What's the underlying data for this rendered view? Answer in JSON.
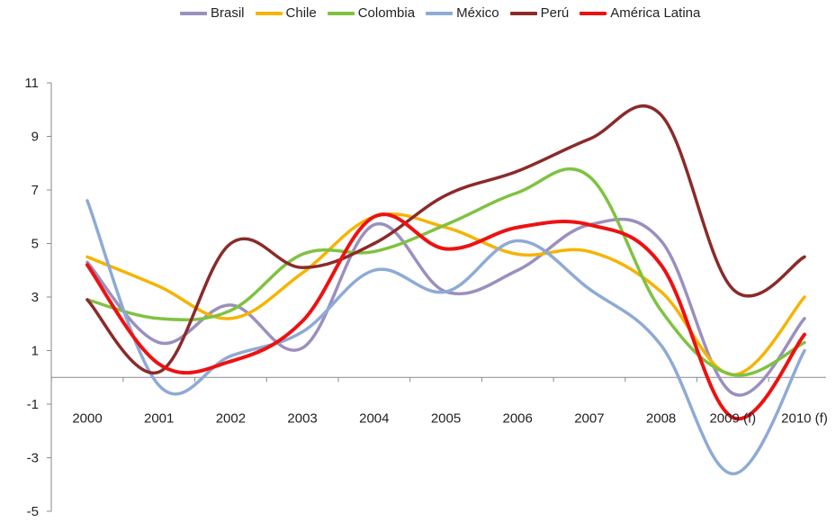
{
  "chart_data": {
    "type": "line",
    "title": "",
    "xlabel": "",
    "ylabel": "",
    "categories": [
      "2000",
      "2001",
      "2002",
      "2003",
      "2004",
      "2005",
      "2006",
      "2007",
      "2008",
      "2009 (f)",
      "2010 (f)"
    ],
    "ylim": [
      -5,
      11
    ],
    "yticks": [
      "11",
      "9",
      "7",
      "5",
      "3",
      "1",
      "-1",
      "-3",
      "-5"
    ],
    "legend_position": "top",
    "grid": false,
    "series": [
      {
        "name": "Brasil",
        "color": "#9b8fbf",
        "values": [
          4.3,
          1.3,
          2.7,
          1.1,
          5.7,
          3.2,
          4.0,
          5.7,
          5.1,
          -0.6,
          2.2
        ]
      },
      {
        "name": "Chile",
        "color": "#f5b400",
        "values": [
          4.5,
          3.4,
          2.2,
          3.9,
          6.0,
          5.6,
          4.6,
          4.7,
          3.2,
          0.1,
          3.0
        ]
      },
      {
        "name": "Colombia",
        "color": "#7fc241",
        "values": [
          2.9,
          2.2,
          2.5,
          4.6,
          4.7,
          5.7,
          6.9,
          7.5,
          2.5,
          0.1,
          1.3
        ]
      },
      {
        "name": "México",
        "color": "#8eaad6",
        "values": [
          6.6,
          -0.3,
          0.8,
          1.7,
          4.0,
          3.2,
          5.1,
          3.3,
          1.2,
          -3.6,
          1.0
        ]
      },
      {
        "name": "Perú",
        "color": "#8b2a2a",
        "values": [
          2.9,
          0.2,
          5.0,
          4.1,
          5.0,
          6.8,
          7.7,
          8.9,
          9.8,
          3.3,
          4.5
        ]
      },
      {
        "name": "América Latina",
        "color": "#ee1111",
        "values": [
          4.2,
          0.5,
          0.6,
          2.1,
          6.0,
          4.8,
          5.6,
          5.7,
          4.2,
          -1.5,
          1.6
        ]
      }
    ]
  }
}
